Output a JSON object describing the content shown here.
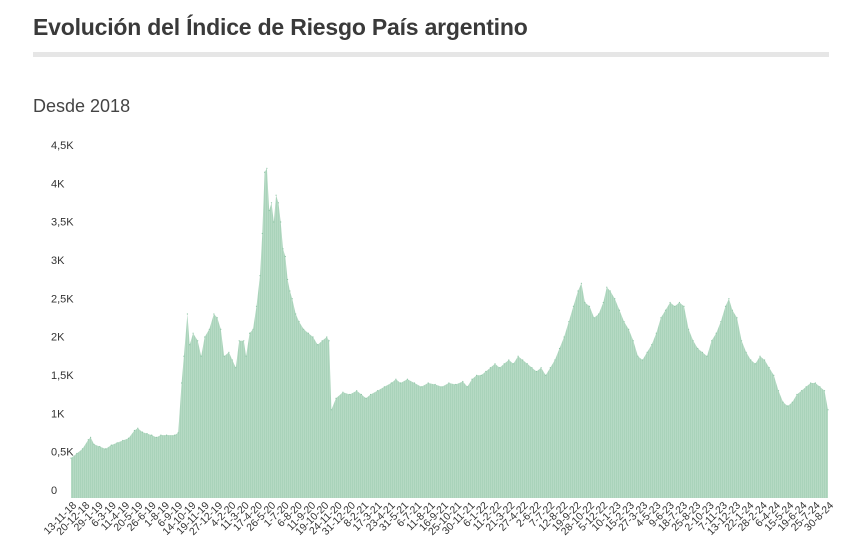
{
  "title": "Evolución del Índice de Riesgo País argentino",
  "subtitle": "Desde 2018",
  "chart_data": {
    "type": "area",
    "title": "Evolución del Índice de Riesgo País argentino",
    "subtitle": "Desde 2018",
    "xlabel": "",
    "ylabel": "",
    "ylim": [
      0,
      4500
    ],
    "y_ticks": [
      "0",
      "0,5K",
      "1K",
      "1,5K",
      "2K",
      "2,5K",
      "3K",
      "3,5K",
      "4K",
      "4,5K"
    ],
    "x_ticks": [
      "13-11-18",
      "20-12-18",
      "29-1-19",
      "6-3-19",
      "11-4-19",
      "20-5-19",
      "26-6-19",
      "1-8-19",
      "6-9-19",
      "14-10-19",
      "19-11-19",
      "27-12-19",
      "4-2-20",
      "11-3-20",
      "17-4-20",
      "26-5-20",
      "1-7-20",
      "6-8-20",
      "11-9-20",
      "19-10-20",
      "24-11-20",
      "31-12-20",
      "8-2-21",
      "17-3-21",
      "23-4-21",
      "31-5-21",
      "6-7-21",
      "11-8-21",
      "16-9-21",
      "25-10-21",
      "30-11-21",
      "6-1-22",
      "11-2-22",
      "21-3-22",
      "27-4-22",
      "2-6-22",
      "7-7-22",
      "12-8-22",
      "19-9-22",
      "28-10-22",
      "5-12-22",
      "10-1-23",
      "15-2-23",
      "27-3-23",
      "4-5-23",
      "9-6-23",
      "18-7-23",
      "25-8-23",
      "2-10-23",
      "7-11-23",
      "13-12-23",
      "22-1-24",
      "28-2-24",
      "6-4-24",
      "15-5-24",
      "19-6-24",
      "25-7-24",
      "30-8-24"
    ],
    "grid": false,
    "legend": "none",
    "colors": {
      "series": "#a9d3ba",
      "accent": "#8cc4a4"
    },
    "series": [
      {
        "values": [
          [
            0,
            520
          ],
          [
            5,
            580
          ],
          [
            10,
            640
          ],
          [
            15,
            760
          ],
          [
            17,
            790
          ],
          [
            20,
            700
          ],
          [
            25,
            670
          ],
          [
            30,
            640
          ],
          [
            35,
            690
          ],
          [
            40,
            720
          ],
          [
            45,
            750
          ],
          [
            50,
            780
          ],
          [
            55,
            880
          ],
          [
            58,
            910
          ],
          [
            62,
            860
          ],
          [
            66,
            840
          ],
          [
            70,
            820
          ],
          [
            74,
            790
          ],
          [
            78,
            820
          ],
          [
            83,
            820
          ],
          [
            90,
            820
          ],
          [
            93,
            850
          ],
          [
            96,
            1500
          ],
          [
            98,
            1850
          ],
          [
            101,
            2400
          ],
          [
            103,
            2000
          ],
          [
            106,
            2150
          ],
          [
            110,
            2050
          ],
          [
            113,
            1850
          ],
          [
            116,
            2100
          ],
          [
            120,
            2200
          ],
          [
            124,
            2400
          ],
          [
            127,
            2350
          ],
          [
            130,
            2200
          ],
          [
            133,
            1850
          ],
          [
            137,
            1900
          ],
          [
            140,
            1800
          ],
          [
            143,
            1700
          ],
          [
            146,
            2050
          ],
          [
            150,
            2050
          ],
          [
            152,
            1850
          ],
          [
            155,
            2150
          ],
          [
            158,
            2200
          ],
          [
            161,
            2500
          ],
          [
            164,
            2900
          ],
          [
            166,
            3450
          ],
          [
            168,
            4250
          ],
          [
            170,
            4300
          ],
          [
            172,
            3750
          ],
          [
            174,
            3850
          ],
          [
            176,
            3600
          ],
          [
            178,
            3950
          ],
          [
            180,
            3850
          ],
          [
            182,
            3600
          ],
          [
            184,
            3250
          ],
          [
            186,
            3150
          ],
          [
            188,
            2850
          ],
          [
            190,
            2700
          ],
          [
            192,
            2600
          ],
          [
            195,
            2400
          ],
          [
            198,
            2300
          ],
          [
            202,
            2200
          ],
          [
            206,
            2150
          ],
          [
            210,
            2100
          ],
          [
            214,
            2000
          ],
          [
            218,
            2050
          ],
          [
            222,
            2100
          ],
          [
            224,
            2050
          ],
          [
            226,
            1150
          ],
          [
            230,
            1300
          ],
          [
            236,
            1380
          ],
          [
            242,
            1350
          ],
          [
            248,
            1400
          ],
          [
            252,
            1350
          ],
          [
            256,
            1300
          ],
          [
            260,
            1350
          ],
          [
            266,
            1400
          ],
          [
            272,
            1450
          ],
          [
            278,
            1500
          ],
          [
            282,
            1550
          ],
          [
            286,
            1500
          ],
          [
            292,
            1550
          ],
          [
            298,
            1500
          ],
          [
            304,
            1450
          ],
          [
            310,
            1500
          ],
          [
            316,
            1480
          ],
          [
            322,
            1450
          ],
          [
            328,
            1500
          ],
          [
            334,
            1480
          ],
          [
            340,
            1520
          ],
          [
            344,
            1450
          ],
          [
            348,
            1550
          ],
          [
            352,
            1600
          ],
          [
            356,
            1600
          ],
          [
            360,
            1650
          ],
          [
            364,
            1700
          ],
          [
            368,
            1750
          ],
          [
            372,
            1700
          ],
          [
            376,
            1750
          ],
          [
            380,
            1800
          ],
          [
            384,
            1750
          ],
          [
            388,
            1850
          ],
          [
            392,
            1800
          ],
          [
            396,
            1750
          ],
          [
            400,
            1700
          ],
          [
            404,
            1650
          ],
          [
            408,
            1700
          ],
          [
            412,
            1600
          ],
          [
            416,
            1700
          ],
          [
            420,
            1800
          ],
          [
            424,
            1950
          ],
          [
            428,
            2100
          ],
          [
            432,
            2300
          ],
          [
            436,
            2500
          ],
          [
            440,
            2700
          ],
          [
            443,
            2800
          ],
          [
            446,
            2550
          ],
          [
            450,
            2500
          ],
          [
            454,
            2350
          ],
          [
            458,
            2400
          ],
          [
            462,
            2550
          ],
          [
            465,
            2750
          ],
          [
            468,
            2700
          ],
          [
            472,
            2600
          ],
          [
            476,
            2450
          ],
          [
            480,
            2300
          ],
          [
            484,
            2200
          ],
          [
            488,
            2050
          ],
          [
            492,
            1850
          ],
          [
            496,
            1800
          ],
          [
            500,
            1900
          ],
          [
            504,
            2000
          ],
          [
            508,
            2150
          ],
          [
            512,
            2350
          ],
          [
            516,
            2450
          ],
          [
            520,
            2550
          ],
          [
            524,
            2500
          ],
          [
            528,
            2550
          ],
          [
            532,
            2500
          ],
          [
            536,
            2200
          ],
          [
            540,
            2050
          ],
          [
            544,
            1950
          ],
          [
            548,
            1900
          ],
          [
            552,
            1850
          ],
          [
            556,
            2050
          ],
          [
            560,
            2150
          ],
          [
            564,
            2300
          ],
          [
            568,
            2500
          ],
          [
            571,
            2600
          ],
          [
            574,
            2450
          ],
          [
            578,
            2350
          ],
          [
            582,
            2050
          ],
          [
            586,
            1900
          ],
          [
            590,
            1800
          ],
          [
            594,
            1750
          ],
          [
            598,
            1850
          ],
          [
            602,
            1800
          ],
          [
            606,
            1700
          ],
          [
            610,
            1600
          ],
          [
            614,
            1400
          ],
          [
            618,
            1250
          ],
          [
            622,
            1200
          ],
          [
            626,
            1250
          ],
          [
            630,
            1350
          ],
          [
            634,
            1400
          ],
          [
            638,
            1450
          ],
          [
            642,
            1500
          ],
          [
            646,
            1500
          ],
          [
            650,
            1450
          ],
          [
            654,
            1400
          ],
          [
            657,
            1150
          ]
        ]
      }
    ]
  }
}
